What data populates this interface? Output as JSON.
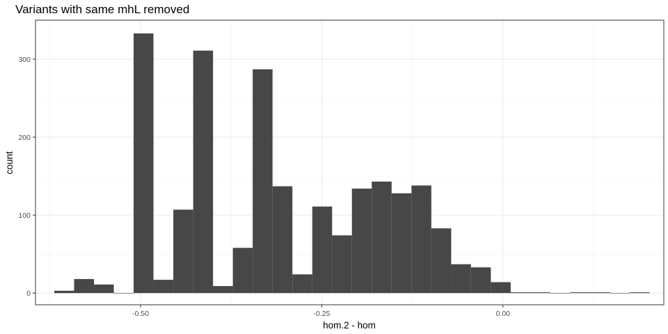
{
  "chart_data": {
    "type": "bar",
    "title": "Variants with same mhL removed",
    "xlabel": "hom.2 - hom",
    "ylabel": "count",
    "xlim": [
      -0.645,
      0.222
    ],
    "ylim": [
      -15,
      350
    ],
    "grid": true,
    "legend": "none",
    "bar_color": "#474747",
    "bin_width": 0.0274,
    "x_ticks": [
      {
        "value": -0.5,
        "label": "-0.50"
      },
      {
        "value": -0.25,
        "label": "-0.25"
      },
      {
        "value": 0.0,
        "label": "0.00"
      }
    ],
    "y_ticks": [
      {
        "value": 0,
        "label": "0"
      },
      {
        "value": 100,
        "label": "100"
      },
      {
        "value": 200,
        "label": "200"
      },
      {
        "value": 300,
        "label": "300"
      }
    ],
    "bins": [
      {
        "x": -0.6054,
        "count": 3
      },
      {
        "x": -0.578,
        "count": 18
      },
      {
        "x": -0.5506,
        "count": 11
      },
      {
        "x": -0.5233,
        "count": 0
      },
      {
        "x": -0.4959,
        "count": 333
      },
      {
        "x": -0.4685,
        "count": 17
      },
      {
        "x": -0.4411,
        "count": 107
      },
      {
        "x": -0.4137,
        "count": 311
      },
      {
        "x": -0.3864,
        "count": 9
      },
      {
        "x": -0.359,
        "count": 58
      },
      {
        "x": -0.3316,
        "count": 287
      },
      {
        "x": -0.3042,
        "count": 137
      },
      {
        "x": -0.2768,
        "count": 24
      },
      {
        "x": -0.2494,
        "count": 111
      },
      {
        "x": -0.2221,
        "count": 74
      },
      {
        "x": -0.1947,
        "count": 134
      },
      {
        "x": -0.1673,
        "count": 143
      },
      {
        "x": -0.1399,
        "count": 128
      },
      {
        "x": -0.1125,
        "count": 138
      },
      {
        "x": -0.0851,
        "count": 83
      },
      {
        "x": -0.0578,
        "count": 37
      },
      {
        "x": -0.0304,
        "count": 33
      },
      {
        "x": -0.003,
        "count": 14
      },
      {
        "x": 0.0244,
        "count": 1
      },
      {
        "x": 0.0518,
        "count": 1
      },
      {
        "x": 0.0791,
        "count": 0
      },
      {
        "x": 0.1065,
        "count": 1
      },
      {
        "x": 0.1339,
        "count": 1
      },
      {
        "x": 0.1613,
        "count": 0
      },
      {
        "x": 0.1887,
        "count": 1
      }
    ]
  }
}
